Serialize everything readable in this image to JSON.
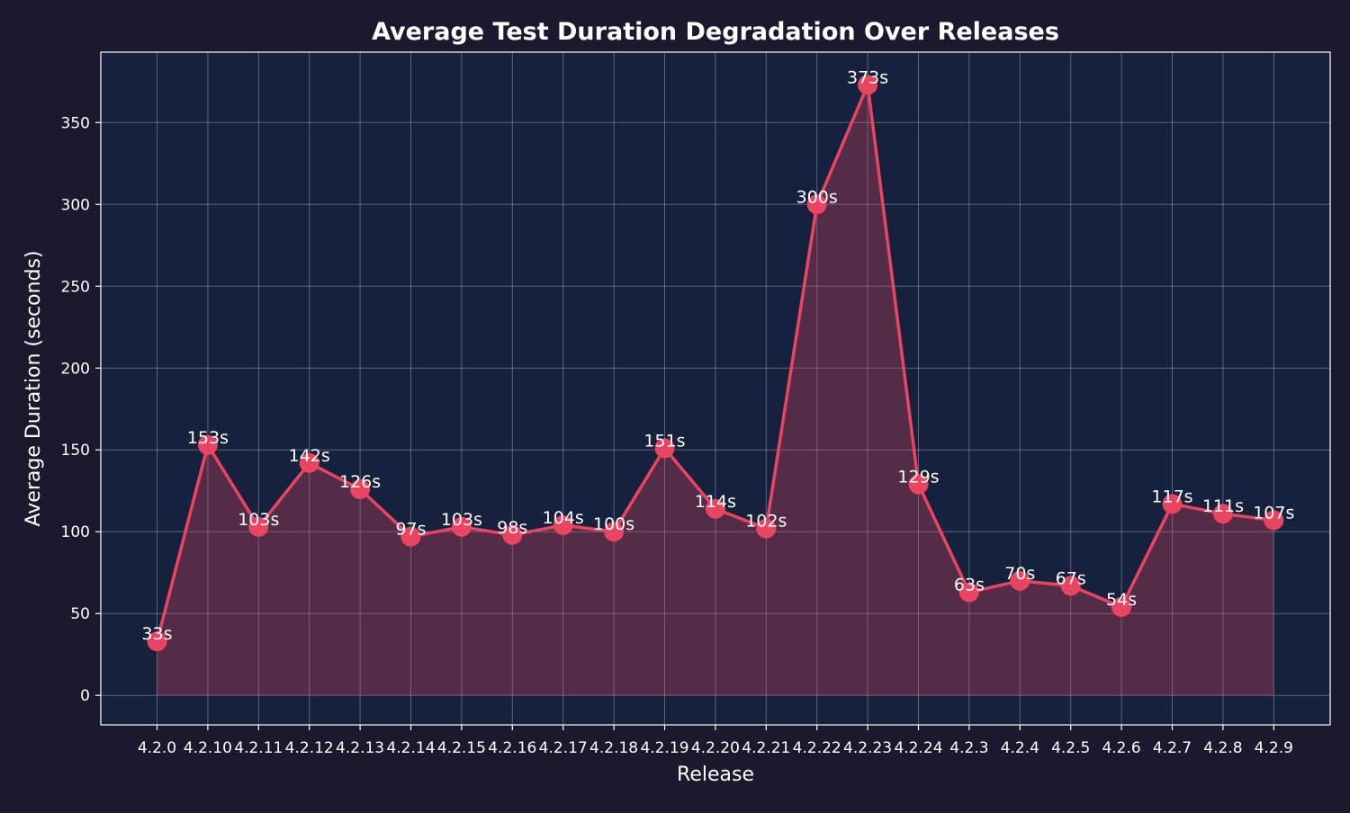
{
  "colors": {
    "figure_background": "#1a1a2e",
    "plot_background": "#16213e",
    "line": "#e94560",
    "fill": "#e94560",
    "text": "#ffffff",
    "grid": "#ffffff"
  },
  "chart_data": {
    "type": "area",
    "title": "Average Test Duration Degradation Over Releases",
    "xlabel": "Release",
    "ylabel": "Average Duration (seconds)",
    "ylim": [
      -18,
      393
    ],
    "yticks": [
      0,
      50,
      100,
      150,
      200,
      250,
      300,
      350
    ],
    "grid": true,
    "marker": "circle",
    "value_suffix": "s",
    "categories": [
      "4.2.0",
      "4.2.10",
      "4.2.11",
      "4.2.12",
      "4.2.13",
      "4.2.14",
      "4.2.15",
      "4.2.16",
      "4.2.17",
      "4.2.18",
      "4.2.19",
      "4.2.20",
      "4.2.21",
      "4.2.22",
      "4.2.23",
      "4.2.24",
      "4.2.3",
      "4.2.4",
      "4.2.5",
      "4.2.6",
      "4.2.7",
      "4.2.8",
      "4.2.9"
    ],
    "values": [
      33,
      153,
      103,
      142,
      126,
      97,
      103,
      98,
      104,
      100,
      151,
      114,
      102,
      300,
      373,
      129,
      63,
      70,
      67,
      54,
      117,
      111,
      107
    ]
  }
}
